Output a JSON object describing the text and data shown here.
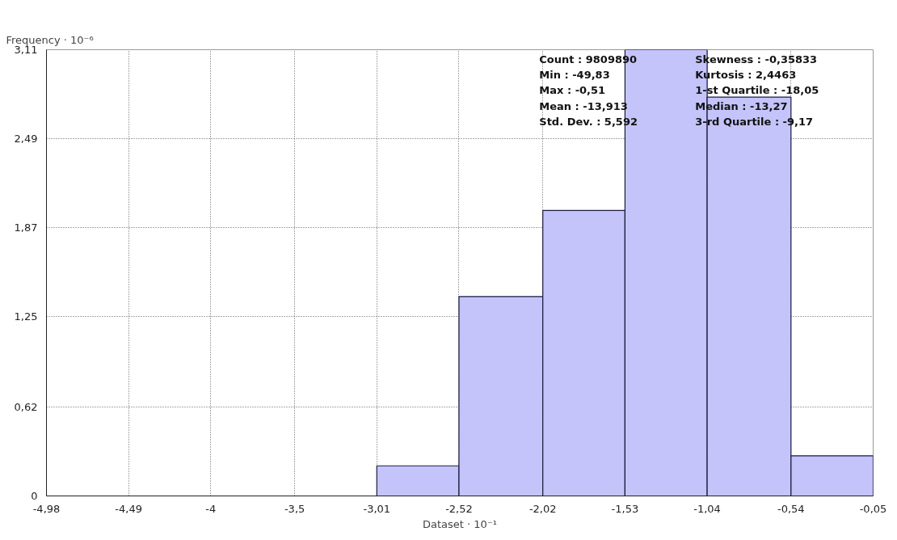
{
  "chart_data": {
    "type": "histogram",
    "xlabel": "Dataset · 10⁻¹",
    "ylabel": "Frequency · 10⁻⁶",
    "bins": [
      -3.01,
      -2.52,
      -2.02,
      -1.53,
      -1.04,
      -0.54,
      -0.05
    ],
    "values": [
      0.21,
      1.39,
      1.99,
      3.11,
      2.78,
      0.28
    ],
    "color": "#c4c4fa",
    "xlim": [
      -4.98,
      -0.05
    ],
    "xticks": [
      {
        "value": -4.98,
        "label": "-4,98"
      },
      {
        "value": -4.49,
        "label": "-4,49"
      },
      {
        "value": -4,
        "label": "-4"
      },
      {
        "value": -3.5,
        "label": "-3,5"
      },
      {
        "value": -3.01,
        "label": "-3,01"
      },
      {
        "value": -2.52,
        "label": "-2,52"
      },
      {
        "value": -2.02,
        "label": "-2,02"
      },
      {
        "value": -1.53,
        "label": "-1,53"
      },
      {
        "value": -1.04,
        "label": "-1,04"
      },
      {
        "value": -0.54,
        "label": "-0,54"
      },
      {
        "value": -0.05,
        "label": "-0,05"
      }
    ],
    "ylim": [
      0,
      3.11
    ],
    "yticks": [
      0,
      {
        "value": 0.62,
        "label": "0,62"
      },
      {
        "value": 1.25,
        "label": "1,25"
      },
      {
        "value": 1.87,
        "label": "1,87"
      },
      {
        "value": 2.49,
        "label": "2,49"
      },
      {
        "value": 3.11,
        "label": "3,11"
      }
    ],
    "grid": true,
    "annotations": [
      "Count : 9809890",
      "Min : -49,83",
      "Max : -0,51",
      "Mean : -13,913",
      "Std. Dev. : 5,592",
      "Skewness : -0,35833",
      "Kurtosis : 2,4463",
      "1-st Quartile : -18,05",
      "Median : -13,27",
      "3-rd Quartile : -9,17"
    ]
  }
}
